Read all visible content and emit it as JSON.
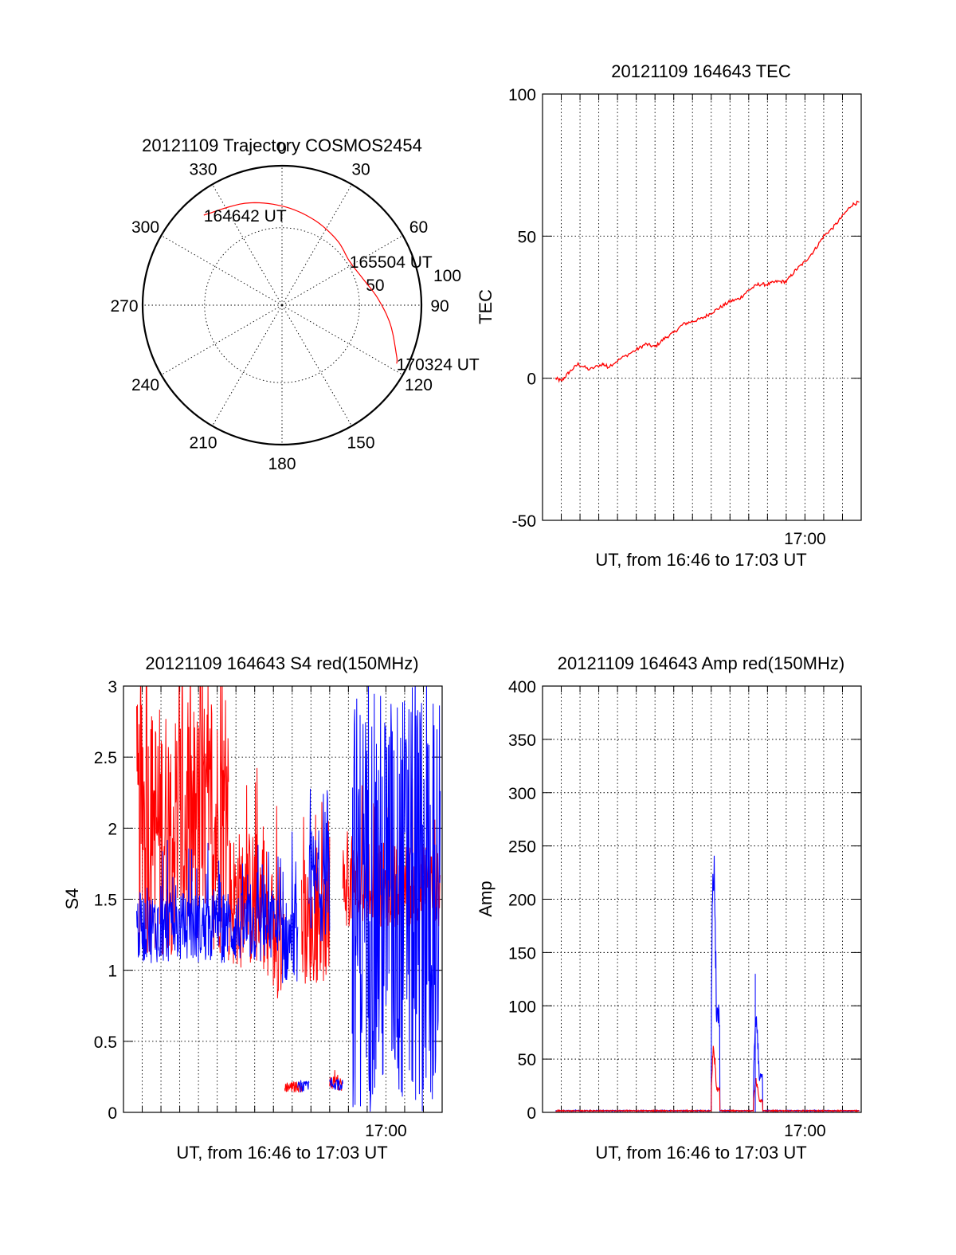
{
  "chart_data": [
    {
      "panel": "trajectory",
      "type": "polar",
      "title": "20121109 Trajectory COSMOS2454",
      "azimuth_labels": [
        "0",
        "30",
        "60",
        "90",
        "120",
        "150",
        "180",
        "210",
        "240",
        "270",
        "300",
        "330"
      ],
      "radial_labels": [
        "50",
        "100"
      ],
      "radius_max": 90,
      "ring_at": 50,
      "series_color": "#ff0000",
      "trajectory": [
        {
          "azimuth_deg": 319,
          "elevation_deg": 13
        },
        {
          "azimuth_deg": 340,
          "elevation_deg": 20
        },
        {
          "azimuth_deg": 0,
          "elevation_deg": 26
        },
        {
          "azimuth_deg": 20,
          "elevation_deg": 31
        },
        {
          "azimuth_deg": 40,
          "elevation_deg": 35
        },
        {
          "azimuth_deg": 57,
          "elevation_deg": 38
        },
        {
          "azimuth_deg": 72,
          "elevation_deg": 35
        },
        {
          "azimuth_deg": 86,
          "elevation_deg": 28
        },
        {
          "azimuth_deg": 100,
          "elevation_deg": 19
        },
        {
          "azimuth_deg": 114,
          "elevation_deg": 9
        },
        {
          "azimuth_deg": 117,
          "elevation_deg": 7
        }
      ],
      "annotations": [
        {
          "text": "164642 UT",
          "azimuth_deg": 319,
          "elevation_deg": 13
        },
        {
          "text": "165504 UT",
          "azimuth_deg": 57,
          "elevation_deg": 38
        },
        {
          "text": "170324 UT",
          "azimuth_deg": 117,
          "elevation_deg": 7
        }
      ]
    },
    {
      "panel": "tec",
      "type": "line",
      "title": "20121109 164643 TEC",
      "xlabel": "UT, from 16:46 to 17:03 UT",
      "ylabel": "TEC",
      "x_tick_label": "17:00",
      "x_tick_at_min": 14.0,
      "xlim_min": [
        0,
        17
      ],
      "ylim": [
        -50,
        100
      ],
      "yticks": [
        "-50",
        "0",
        "50",
        "100"
      ],
      "x_grid_step_min": 1,
      "series": [
        {
          "color": "#ff0000",
          "x_min": [
            0.7,
            1.0,
            1.4,
            1.9,
            2.5,
            3.2,
            3.5,
            4.2,
            5.0,
            5.5,
            6.0,
            6.5,
            7.0,
            7.5,
            8.0,
            8.5,
            9.0,
            9.5,
            10.0,
            10.5,
            11.0,
            11.5,
            12.0,
            12.5,
            13.0,
            13.5,
            14.0,
            14.5,
            15.0,
            15.5,
            16.0,
            16.5,
            16.9
          ],
          "y": [
            0,
            -1,
            2,
            5,
            3,
            5,
            4,
            7,
            10,
            12,
            11,
            14,
            16,
            19,
            20,
            21,
            23,
            25,
            27,
            28,
            31,
            33,
            33,
            34,
            34,
            38,
            41,
            45,
            50,
            53,
            57,
            61,
            62
          ]
        }
      ]
    },
    {
      "panel": "s4",
      "type": "line",
      "title": "20121109 164643 S4 red(150MHz)",
      "xlabel": "UT, from 16:46 to 17:03 UT",
      "ylabel": "S4",
      "x_tick_label": "17:00",
      "x_tick_at_min": 14.0,
      "xlim_min": [
        0,
        17
      ],
      "ylim": [
        0,
        3
      ],
      "yticks": [
        "0",
        "0.5",
        "1",
        "1.5",
        "2",
        "2.5",
        "3"
      ],
      "x_grid_step_min": 1,
      "segments": [
        {
          "color": "#ff0000",
          "x_range": [
            0.7,
            5.6
          ],
          "base": 2.0,
          "spread": 0.9,
          "min": 1.0
        },
        {
          "color": "#ff0000",
          "x_range": [
            5.6,
            7.5
          ],
          "base": 1.5,
          "spread": 0.5,
          "min": 0.5
        },
        {
          "color": "#ff0000",
          "x_range": [
            7.5,
            8.6
          ],
          "base": 1.2,
          "spread": 0.4,
          "min": 0.6
        },
        {
          "color": "#ff0000",
          "x_range": [
            8.6,
            9.5
          ],
          "base": 0.18,
          "spread": 0.04,
          "min": 0.1
        },
        {
          "color": "#ff0000",
          "x_range": [
            9.5,
            11.0
          ],
          "base": 1.3,
          "spread": 0.4,
          "min": 0.9
        },
        {
          "color": "#ff0000",
          "x_range": [
            11.0,
            11.7
          ],
          "base": 0.2,
          "spread": 0.05,
          "min": 0.1
        },
        {
          "color": "#ff0000",
          "x_range": [
            11.7,
            16.9
          ],
          "base": 1.6,
          "spread": 0.3,
          "min": 1.2
        },
        {
          "color": "#0000ff",
          "x_range": [
            0.7,
            8.2
          ],
          "base": 1.3,
          "spread": 0.25,
          "min": 0.9
        },
        {
          "color": "#0000ff",
          "x_range": [
            8.2,
            9.3
          ],
          "base": 1.2,
          "spread": 0.3,
          "min": 0.5
        },
        {
          "color": "#0000ff",
          "x_range": [
            9.3,
            9.9
          ],
          "base": 0.18,
          "spread": 0.04,
          "min": 0.1
        },
        {
          "color": "#0000ff",
          "x_range": [
            9.9,
            11.0
          ],
          "base": 1.6,
          "spread": 0.4,
          "min": 1.0
        },
        {
          "color": "#0000ff",
          "x_range": [
            11.0,
            11.7
          ],
          "base": 0.2,
          "spread": 0.05,
          "min": 0.1
        },
        {
          "color": "#0000ff",
          "x_range": [
            12.2,
            16.9
          ],
          "base": 1.5,
          "spread": 1.5,
          "min": 0.0
        }
      ]
    },
    {
      "panel": "amp",
      "type": "line",
      "title": "20121109 164643 Amp red(150MHz)",
      "xlabel": "UT, from 16:46 to 17:03 UT",
      "ylabel": "Amp",
      "x_tick_label": "17:00",
      "x_tick_at_min": 14.0,
      "xlim_min": [
        0,
        17
      ],
      "ylim": [
        0,
        400
      ],
      "yticks": [
        "0",
        "50",
        "100",
        "150",
        "200",
        "250",
        "300",
        "350",
        "400"
      ],
      "x_grid_step_min": 1,
      "baseline": 1.5,
      "bursts": [
        {
          "x_start": 9.0,
          "x_end": 9.45,
          "blue_peak": 290,
          "red_peak": 70
        },
        {
          "x_start": 11.25,
          "x_end": 11.75,
          "blue_peak": 105,
          "red_peak": 35
        }
      ],
      "blue_spike": {
        "x": 11.35,
        "y": 130
      }
    }
  ]
}
